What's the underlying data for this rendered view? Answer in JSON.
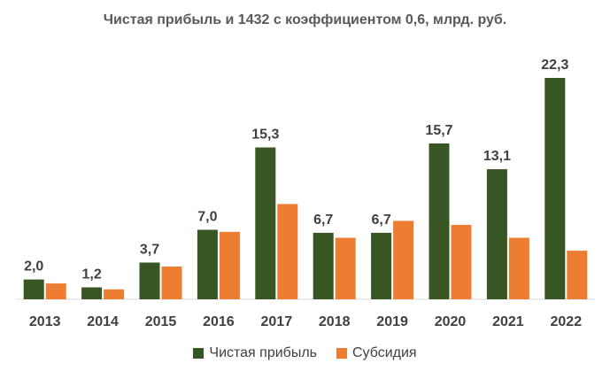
{
  "chart_data": {
    "type": "bar",
    "title": "Чистая прибыль и 1432 с коэффициентом 0,6, млрд. руб.",
    "categories": [
      "2013",
      "2014",
      "2015",
      "2016",
      "2017",
      "2018",
      "2019",
      "2020",
      "2021",
      "2022"
    ],
    "series": [
      {
        "name": "Чистая прибыль",
        "color": "#375623",
        "values": [
          2.0,
          1.2,
          3.7,
          7.0,
          15.3,
          6.7,
          6.7,
          15.7,
          13.1,
          22.3
        ],
        "labels": [
          "2,0",
          "1,2",
          "3,7",
          "7,0",
          "15,3",
          "6,7",
          "6,7",
          "15,7",
          "13,1",
          "22,3"
        ]
      },
      {
        "name": "Субсидия",
        "color": "#ED7D31",
        "values": [
          1.6,
          1.0,
          3.3,
          6.8,
          9.6,
          6.2,
          7.9,
          7.5,
          6.2,
          4.9
        ]
      }
    ],
    "ylim": [
      0,
      22.3
    ],
    "grid": false,
    "legend_position": "bottom"
  }
}
